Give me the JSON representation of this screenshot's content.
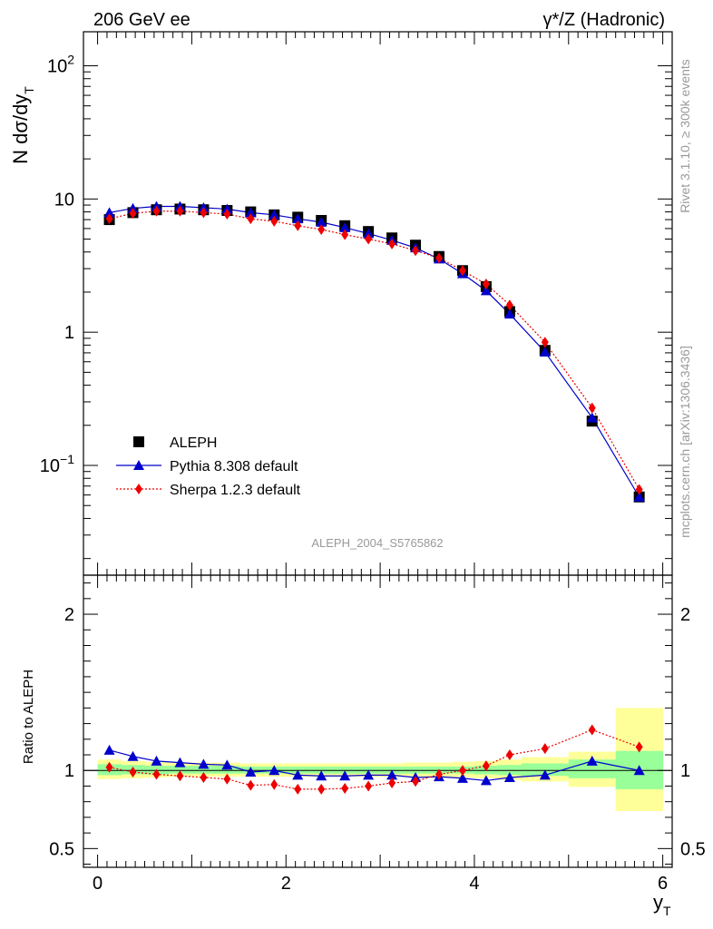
{
  "header": {
    "left": "206 GeV ee",
    "right": "γ*/Z (Hadronic)"
  },
  "side": {
    "top": "Rivet 3.1.10, ≥ 300k events",
    "bottom": "mcplots.cern.ch [arXiv:1306.3436]"
  },
  "analysis_id": "ALEPH_2004_S5765862",
  "chart_data": [
    {
      "type": "scatter",
      "panel": "main",
      "ylabel": "N dσ/dy_T",
      "yscale": "log",
      "ylim": [
        0.015,
        180
      ],
      "xlim": [
        -0.15,
        6.1
      ],
      "ytick_labels": [
        "10^-1",
        "1",
        "10",
        "10^2"
      ],
      "legend_placement": "lower-left",
      "x": [
        0.125,
        0.375,
        0.625,
        0.875,
        1.125,
        1.375,
        1.625,
        1.875,
        2.125,
        2.375,
        2.625,
        2.875,
        3.125,
        3.375,
        3.625,
        3.875,
        4.125,
        4.375,
        4.75,
        5.25,
        5.75
      ],
      "series": [
        {
          "name": "ALEPH",
          "color": "#000000",
          "marker": "square",
          "values": [
            7.0,
            7.9,
            8.3,
            8.4,
            8.3,
            8.2,
            8.0,
            7.6,
            7.3,
            6.9,
            6.3,
            5.7,
            5.1,
            4.5,
            3.7,
            2.9,
            2.2,
            1.43,
            0.73,
            0.215,
            0.058
          ]
        },
        {
          "name": "Pythia 8.308 default",
          "color": "#0000cc",
          "marker": "triangle",
          "line": "solid",
          "values": [
            7.9,
            8.5,
            8.8,
            8.8,
            8.6,
            8.4,
            7.9,
            7.6,
            7.1,
            6.7,
            6.1,
            5.5,
            4.9,
            4.3,
            3.55,
            2.75,
            2.05,
            1.37,
            0.71,
            0.228,
            0.058
          ]
        },
        {
          "name": "Sherpa 1.2.3 default",
          "color": "#ee0000",
          "marker": "diamond",
          "line": "dotted",
          "values": [
            7.1,
            7.8,
            8.1,
            8.1,
            7.9,
            7.7,
            7.1,
            6.8,
            6.3,
            5.9,
            5.4,
            5.0,
            4.6,
            4.1,
            3.6,
            2.9,
            2.3,
            1.6,
            0.84,
            0.27,
            0.066
          ]
        }
      ]
    },
    {
      "type": "scatter",
      "panel": "ratio",
      "ylabel": "Ratio to ALEPH",
      "xlabel": "y_T",
      "ylim": [
        0.38,
        2.25
      ],
      "xlim": [
        -0.15,
        6.1
      ],
      "xtick_labels": [
        "0",
        "2",
        "4",
        "6"
      ],
      "ytick_labels": [
        "0.5",
        "1",
        "2"
      ],
      "x": [
        0.125,
        0.375,
        0.625,
        0.875,
        1.125,
        1.375,
        1.625,
        1.875,
        2.125,
        2.375,
        2.625,
        2.875,
        3.125,
        3.375,
        3.625,
        3.875,
        4.125,
        4.375,
        4.75,
        5.25,
        5.75
      ],
      "bands": {
        "edges": [
          0,
          0.25,
          0.5,
          0.75,
          1.0,
          1.25,
          1.5,
          1.75,
          2.0,
          2.25,
          2.5,
          2.75,
          3.0,
          3.25,
          3.5,
          3.75,
          4.0,
          4.25,
          4.5,
          5.0,
          5.5,
          6.0
        ],
        "inner": [
          [
            0.97,
            1.04
          ],
          [
            0.975,
            1.035
          ],
          [
            0.975,
            1.03
          ],
          [
            0.98,
            1.03
          ],
          [
            0.98,
            1.03
          ],
          [
            0.98,
            1.03
          ],
          [
            0.98,
            1.025
          ],
          [
            0.98,
            1.025
          ],
          [
            0.98,
            1.025
          ],
          [
            0.98,
            1.025
          ],
          [
            0.98,
            1.025
          ],
          [
            0.98,
            1.025
          ],
          [
            0.98,
            1.025
          ],
          [
            0.98,
            1.025
          ],
          [
            0.98,
            1.025
          ],
          [
            0.98,
            1.025
          ],
          [
            0.975,
            1.03
          ],
          [
            0.97,
            1.035
          ],
          [
            0.965,
            1.045
          ],
          [
            0.95,
            1.07
          ],
          [
            0.88,
            1.125
          ]
        ],
        "outer": [
          [
            0.945,
            1.07
          ],
          [
            0.95,
            1.06
          ],
          [
            0.955,
            1.055
          ],
          [
            0.96,
            1.05
          ],
          [
            0.96,
            1.05
          ],
          [
            0.96,
            1.05
          ],
          [
            0.96,
            1.045
          ],
          [
            0.96,
            1.045
          ],
          [
            0.96,
            1.045
          ],
          [
            0.96,
            1.045
          ],
          [
            0.96,
            1.045
          ],
          [
            0.96,
            1.045
          ],
          [
            0.96,
            1.045
          ],
          [
            0.96,
            1.05
          ],
          [
            0.96,
            1.05
          ],
          [
            0.955,
            1.055
          ],
          [
            0.95,
            1.06
          ],
          [
            0.94,
            1.07
          ],
          [
            0.93,
            1.085
          ],
          [
            0.895,
            1.12
          ],
          [
            0.74,
            1.4
          ]
        ]
      },
      "series": [
        {
          "name": "Pythia 8.308 default",
          "color": "#0000cc",
          "marker": "triangle",
          "line": "solid",
          "values": [
            1.13,
            1.09,
            1.06,
            1.05,
            1.04,
            1.035,
            0.99,
            1.0,
            0.97,
            0.965,
            0.965,
            0.97,
            0.97,
            0.955,
            0.96,
            0.95,
            0.935,
            0.955,
            0.97,
            1.06,
            1.0
          ]
        },
        {
          "name": "Sherpa 1.2.3 default",
          "color": "#ee0000",
          "marker": "diamond",
          "line": "dotted",
          "values": [
            1.02,
            0.99,
            0.975,
            0.965,
            0.955,
            0.945,
            0.905,
            0.91,
            0.88,
            0.88,
            0.885,
            0.9,
            0.92,
            0.93,
            0.975,
            1.0,
            1.03,
            1.1,
            1.14,
            1.26,
            1.15
          ]
        }
      ]
    }
  ]
}
